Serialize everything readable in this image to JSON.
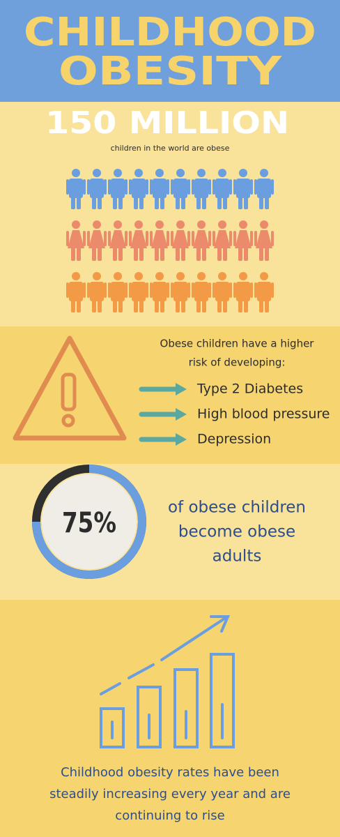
{
  "header": {
    "title_lines": [
      "CHILDHOOD",
      "OBESITY"
    ]
  },
  "stat": {
    "headline": "150 MILLION",
    "caption": "children in the world are obese"
  },
  "risk": {
    "intro_lines": [
      "Obese children have a higher",
      "risk of developing:"
    ],
    "items": [
      "Type 2 Diabetes",
      "High blood pressure",
      "Depression"
    ]
  },
  "percent": {
    "value": 75,
    "label": "75%",
    "caption_lines": [
      "of obese children",
      "become obese",
      "adults"
    ]
  },
  "footer": {
    "lines": [
      "Childhood obesity rates have been",
      "steadily increasing every year and are",
      "continuing to rise"
    ]
  }
}
